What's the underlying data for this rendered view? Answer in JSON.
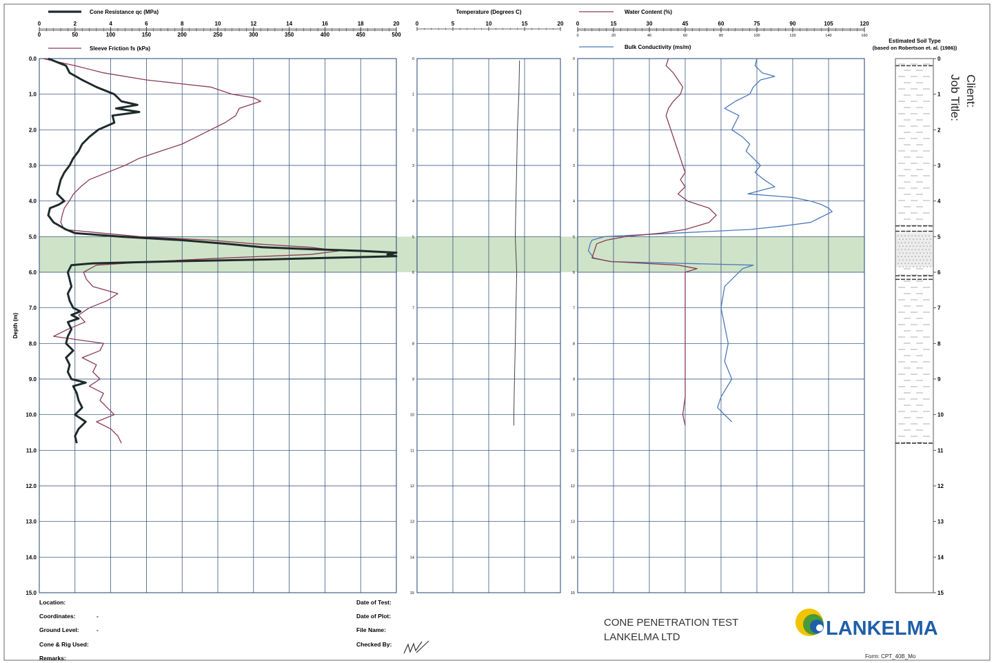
{
  "chart_data": [
    {
      "type": "line",
      "panel": "cone-friction",
      "y_axis": {
        "label": "Depth (m)",
        "range": [
          0,
          15
        ],
        "ticks": [
          "0.0",
          "1.0",
          "2.0",
          "3.0",
          "4.0",
          "5.0",
          "6.0",
          "7.0",
          "8.0",
          "9.0",
          "10.0",
          "11.0",
          "12.0",
          "13.0",
          "14.0",
          "15.0"
        ]
      },
      "x_axes": [
        {
          "label": "Cone Resistance qc (MPa)",
          "range": [
            0,
            20
          ],
          "ticks": [
            "0",
            "2",
            "4",
            "6",
            "8",
            "10",
            "12",
            "14",
            "16",
            "18",
            "20"
          ]
        },
        {
          "label": "Sleeve Friction fs (kPa)",
          "range": [
            0,
            500
          ],
          "ticks": [
            "0",
            "50",
            "100",
            "150",
            "200",
            "250",
            "300",
            "350",
            "400",
            "450",
            "500"
          ]
        }
      ],
      "grid": true,
      "series": [
        {
          "name": "Cone Resistance qc (MPa)",
          "axis": 0,
          "color": "#1e2b2b",
          "depth": [
            0,
            0.2,
            0.4,
            0.6,
            0.8,
            1.0,
            1.2,
            1.3,
            1.4,
            1.5,
            1.6,
            1.8,
            2.0,
            2.2,
            2.4,
            2.6,
            2.8,
            3.0,
            3.2,
            3.4,
            3.6,
            3.8,
            4.0,
            4.1,
            4.2,
            4.4,
            4.6,
            4.8,
            4.9,
            5.0,
            5.1,
            5.2,
            5.3,
            5.35,
            5.4,
            5.45,
            5.5,
            5.55,
            5.6,
            5.65,
            5.7,
            5.75,
            5.8,
            6.0,
            6.2,
            6.4,
            6.6,
            6.8,
            7.0,
            7.1,
            7.2,
            7.3,
            7.4,
            7.6,
            7.8,
            8.0,
            8.2,
            8.4,
            8.6,
            8.8,
            9.0,
            9.1,
            9.2,
            9.4,
            9.6,
            9.8,
            10.0,
            10.2,
            10.4,
            10.6,
            10.8
          ],
          "values": [
            0.5,
            1.5,
            1.7,
            2.4,
            3.2,
            4.2,
            4.6,
            5.5,
            4.3,
            5.6,
            4.1,
            4.2,
            3.3,
            2.8,
            2.4,
            2.2,
            1.9,
            1.7,
            1.4,
            1.2,
            1.1,
            1.0,
            1.4,
            1.1,
            0.6,
            0.5,
            0.8,
            1.5,
            2.0,
            4.5,
            8.0,
            10.5,
            12.5,
            15.0,
            18.0,
            20.0,
            19.5,
            20.0,
            16.0,
            12.0,
            7.0,
            3.0,
            1.8,
            1.6,
            1.7,
            1.8,
            1.6,
            1.7,
            1.9,
            2.3,
            1.8,
            2.2,
            1.6,
            1.8,
            1.6,
            1.5,
            1.9,
            1.5,
            1.7,
            1.6,
            1.8,
            2.6,
            1.9,
            2.1,
            2.2,
            2.4,
            2.0,
            2.6,
            2.2,
            2.0,
            2.1
          ]
        },
        {
          "name": "Sleeve Friction fs (kPa)",
          "axis": 1,
          "color": "#8b3a52",
          "depth": [
            0,
            0.2,
            0.4,
            0.6,
            0.8,
            1.0,
            1.1,
            1.2,
            1.4,
            1.6,
            1.8,
            2.0,
            2.2,
            2.4,
            2.6,
            2.8,
            3.0,
            3.2,
            3.4,
            3.6,
            3.8,
            4.0,
            4.2,
            4.4,
            4.6,
            4.8,
            5.0,
            5.1,
            5.2,
            5.3,
            5.4,
            5.5,
            5.6,
            5.7,
            5.8,
            6.0,
            6.2,
            6.4,
            6.6,
            6.8,
            7.0,
            7.2,
            7.4,
            7.6,
            7.8,
            8.0,
            8.2,
            8.4,
            8.6,
            8.8,
            9.0,
            9.2,
            9.4,
            9.6,
            9.8,
            10.0,
            10.2,
            10.4,
            10.6,
            10.8
          ],
          "values": [
            5,
            50,
            90,
            150,
            240,
            270,
            300,
            310,
            280,
            275,
            260,
            240,
            220,
            200,
            170,
            140,
            120,
            95,
            70,
            58,
            48,
            42,
            35,
            32,
            30,
            35,
            140,
            240,
            300,
            380,
            420,
            380,
            260,
            160,
            80,
            62,
            66,
            75,
            110,
            95,
            70,
            55,
            64,
            40,
            20,
            90,
            85,
            60,
            80,
            75,
            85,
            70,
            90,
            85,
            95,
            105,
            80,
            100,
            110,
            115
          ]
        },
        {
          "name": "Temperature (Degrees C)",
          "axis": 2,
          "color": "#444",
          "depth": [
            0.05,
            1,
            2,
            3,
            4,
            5,
            6,
            7,
            8,
            9,
            10,
            10.3
          ],
          "values": [
            14.3,
            14.2,
            14.0,
            13.9,
            13.8,
            13.7,
            13.9,
            13.8,
            13.7,
            13.6,
            13.5,
            13.5
          ]
        }
      ]
    },
    {
      "type": "line",
      "panel": "water-conductivity",
      "x_axes": [
        {
          "label": "Water Content (%)",
          "range": [
            0,
            120
          ],
          "ticks": [
            "0",
            "15",
            "30",
            "45",
            "60",
            "75",
            "90",
            "105",
            "120"
          ]
        },
        {
          "label": "Bulk Conductivity (ms/m)",
          "range": [
            0,
            160
          ],
          "ticks": [
            "0",
            "20",
            "40",
            "60",
            "80",
            "100",
            "120",
            "140",
            "160"
          ]
        }
      ],
      "series": [
        {
          "name": "Water Content (%)",
          "color": "#8b3a52",
          "depth": [
            0,
            0.2,
            0.4,
            0.6,
            0.8,
            1.0,
            1.2,
            1.4,
            1.6,
            1.8,
            2.0,
            2.4,
            2.8,
            3.0,
            3.2,
            3.4,
            3.6,
            3.8,
            3.9,
            4.0,
            4.2,
            4.4,
            4.6,
            4.8,
            4.9,
            5.0,
            5.1,
            5.2,
            5.4,
            5.6,
            5.7,
            5.8,
            5.9,
            6.0,
            6.5,
            7.0,
            7.5,
            8.0,
            8.5,
            9.0,
            9.5,
            10.0,
            10.3
          ],
          "values": [
            38,
            37,
            40,
            42,
            44,
            43,
            40,
            38,
            37,
            38,
            39,
            41,
            43,
            44,
            45,
            43,
            45,
            42,
            44,
            46,
            55,
            58,
            55,
            45,
            35,
            20,
            12,
            8,
            7,
            6,
            14,
            42,
            50,
            45,
            45,
            45,
            45,
            45,
            45,
            45,
            45,
            44,
            45
          ]
        },
        {
          "name": "Bulk Conductivity (ms/m)",
          "color": "#4a78b8",
          "depth": [
            0,
            0.2,
            0.4,
            0.5,
            0.6,
            0.8,
            1.0,
            1.2,
            1.4,
            1.6,
            1.8,
            2.0,
            2.2,
            2.4,
            2.6,
            2.8,
            3.0,
            3.2,
            3.4,
            3.6,
            3.8,
            3.9,
            4.0,
            4.1,
            4.2,
            4.3,
            4.4,
            4.5,
            4.6,
            4.7,
            4.8,
            5.0,
            5.1,
            5.2,
            5.4,
            5.6,
            5.7,
            5.8,
            5.9,
            6.1,
            6.4,
            7.0,
            7.5,
            8.0,
            8.5,
            9.0,
            9.5,
            9.8,
            10.0,
            10.2
          ],
          "values": [
            100,
            99,
            103,
            110,
            102,
            98,
            96,
            88,
            82,
            90,
            88,
            86,
            92,
            96,
            94,
            98,
            102,
            99,
            104,
            110,
            95,
            120,
            130,
            136,
            140,
            142,
            138,
            134,
            130,
            115,
            96,
            15,
            8,
            7,
            6,
            9,
            18,
            98,
            92,
            88,
            82,
            80,
            82,
            84,
            82,
            86,
            80,
            78,
            82,
            86
          ]
        }
      ]
    }
  ],
  "soil": {
    "title_line1": "Estimated Soil Type",
    "title_line2": "(based on Robertson et. al. (1986))",
    "ticks": [
      "0",
      "1",
      "2",
      "3",
      "4",
      "5",
      "6",
      "7",
      "8",
      "9",
      "10",
      "11",
      "12",
      "13",
      "14",
      "15"
    ]
  },
  "temperature_axis": {
    "label": "Temperature (Degrees C)",
    "range": [
      0,
      20
    ],
    "ticks": [
      "0",
      "5",
      "10",
      "15",
      "20"
    ]
  },
  "highlight_band": {
    "from": 5.0,
    "to": 6.0,
    "color": "#cfe3c8"
  },
  "side_labels": {
    "client": "Client:",
    "job_title": "Job Title:"
  },
  "footer": {
    "location": "Location:",
    "coordinates": "Coordinates:",
    "coordinates_value": "-",
    "ground_level": "Ground Level:",
    "ground_level_value": "-",
    "cone_rig": "Cone & Rig Used:",
    "remarks": "Remarks:",
    "date_of_test": "Date of Test:",
    "date_of_plot": "Date of Plot:",
    "file_name": "File Name:",
    "checked_by": "Checked By:",
    "report_title_1": "CONE PENETRATION TEST",
    "report_title_2": "LANKELMA LTD",
    "brand": "LANKELMA",
    "form": "Form: CPT_40B_Mo"
  }
}
